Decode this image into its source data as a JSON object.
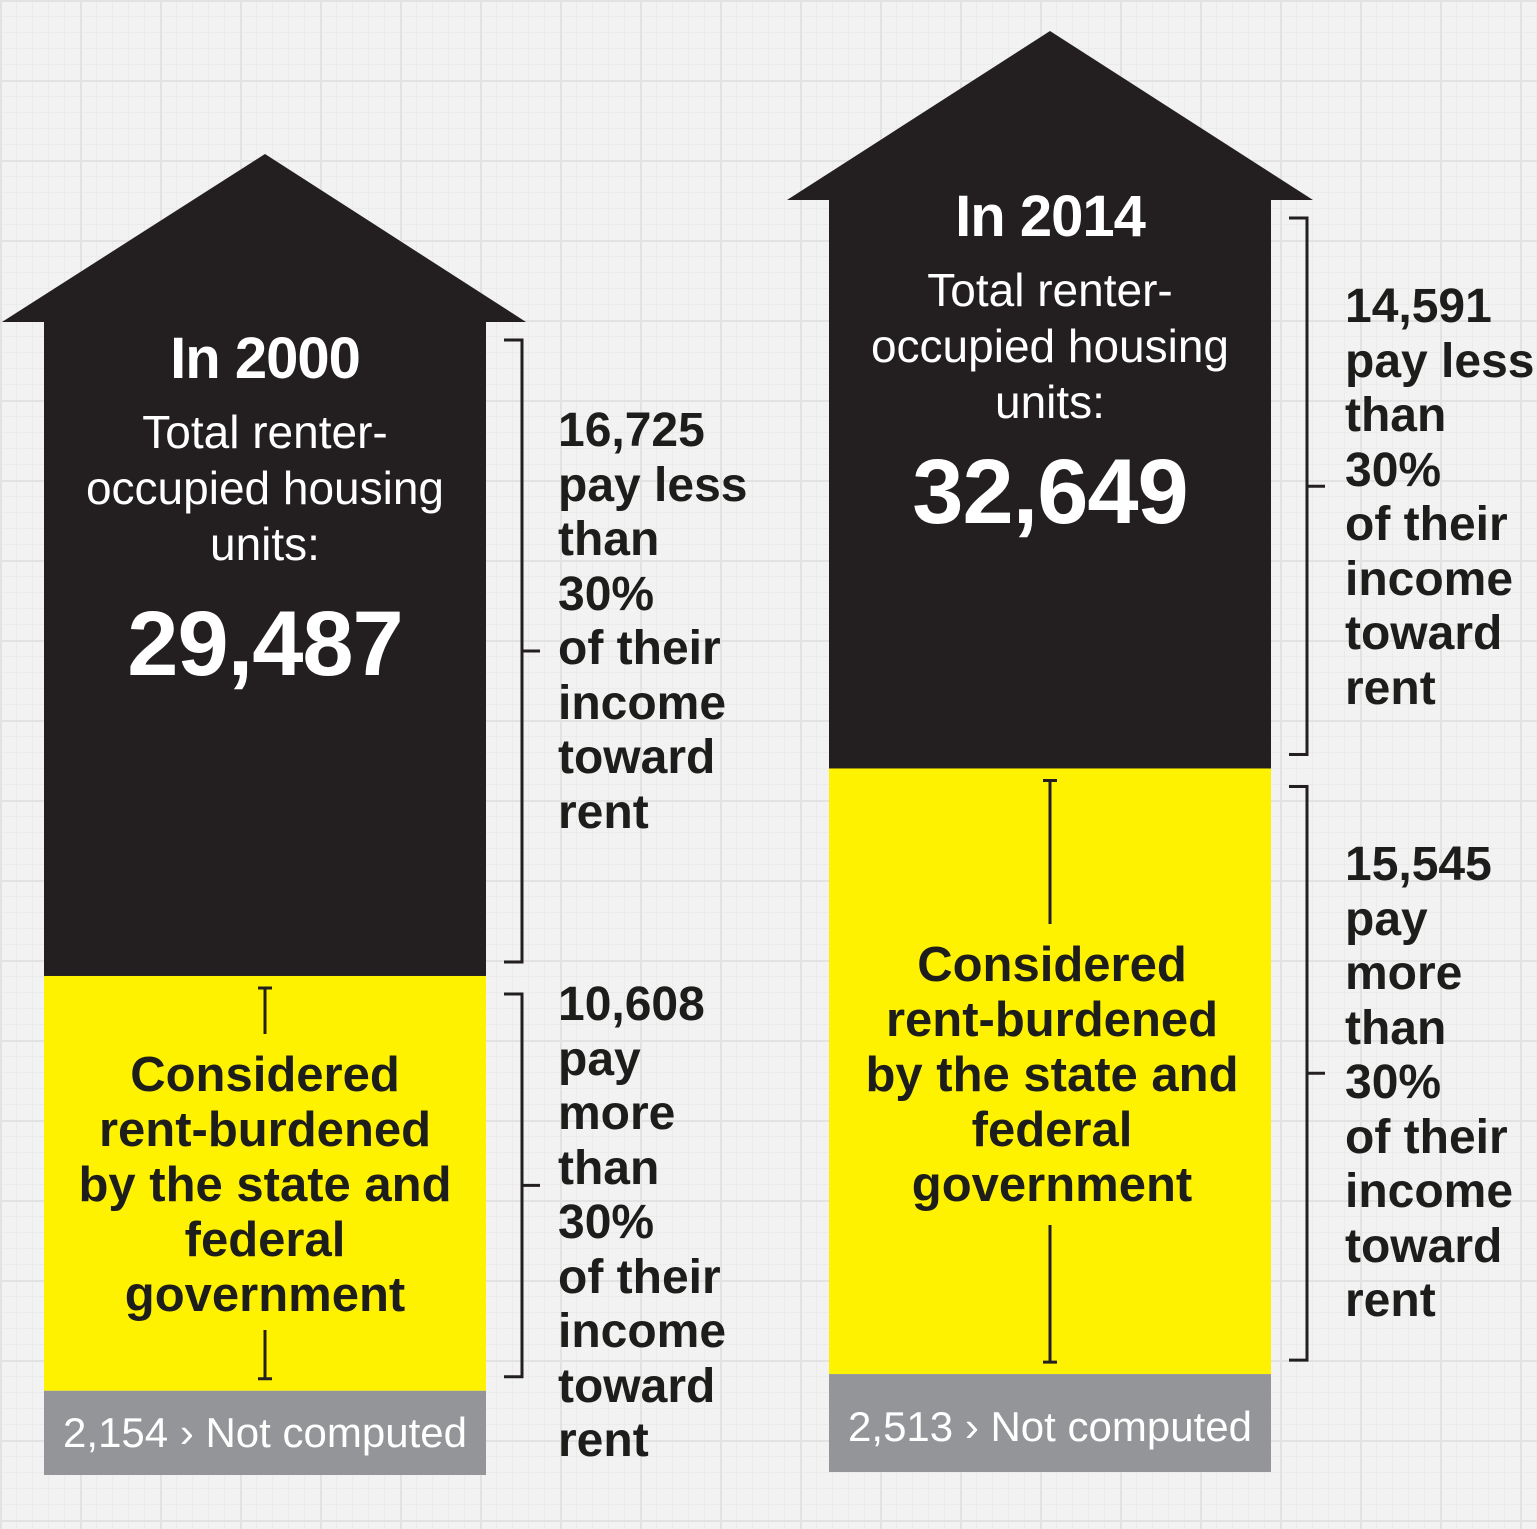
{
  "chart_data": [
    {
      "type": "stacked-arrow",
      "title": "In 2000",
      "total_label": "Total renter-occupied housing units:",
      "total_value": 29487,
      "total_display": "29,487",
      "segments": [
        {
          "name": "pay less than 30%",
          "value": 16725,
          "display": "16,725",
          "label": "16,725\npay less\nthan\n30%\nof their\nincome\ntoward\nrent",
          "color": "#231f20"
        },
        {
          "name": "pay more than 30%",
          "value": 10608,
          "display": "10,608",
          "label": "10,608\npay\nmore\nthan\n30%\nof their\nincome\ntoward\nrent",
          "inner_label": "Considered rent-burdened by the state and federal government",
          "color": "#fff200"
        },
        {
          "name": "Not computed",
          "value": 2154,
          "display": "2,154",
          "label": "2,154 › Not computed",
          "color": "#939598"
        }
      ]
    },
    {
      "type": "stacked-arrow",
      "title": "In 2014",
      "total_label": "Total renter-occupied housing units:",
      "total_value": 32649,
      "total_display": "32,649",
      "segments": [
        {
          "name": "pay less than 30%",
          "value": 14591,
          "display": "14,591",
          "label": "14,591\npay less\nthan\n30%\nof their\nincome\ntoward\nrent",
          "color": "#231f20"
        },
        {
          "name": "pay more than 30%",
          "value": 15545,
          "display": "15,545",
          "label": "15,545\npay\nmore\nthan\n30%\nof their\nincome\ntoward\nrent",
          "inner_label": "Considered rent-burdened by the state and federal government",
          "color": "#fff200"
        },
        {
          "name": "Not computed",
          "value": 2513,
          "display": "2,513",
          "label": "2,513 › Not computed",
          "color": "#939598"
        }
      ]
    }
  ]
}
